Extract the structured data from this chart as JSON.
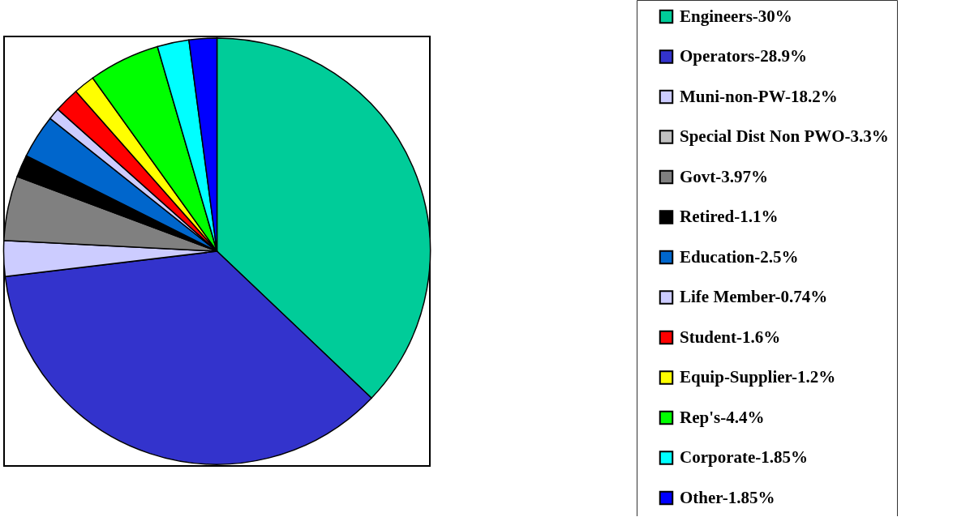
{
  "chart_data": {
    "type": "pie",
    "categories": [
      "Engineers-30%",
      "Operators-28.9%",
      "Muni-non-PW-18.2%",
      "Special Dist Non PWO-3.3%",
      "Govt-3.97%",
      "Retired-1.1%",
      "Education-2.5%",
      "Life Member-0.74%",
      "Student-1.6%",
      "Equip-Supplier-1.2%",
      "Rep's-4.4%",
      "Corporate-1.85%",
      "Other-1.85%"
    ],
    "values": [
      37.1,
      36.0,
      2.7,
      null,
      4.9,
      1.7,
      3.3,
      0.9,
      1.9,
      1.6,
      5.4,
      2.4,
      2.1
    ],
    "colors": [
      "#00cc99",
      "#3333cc",
      "#ccccff",
      "#c0c0c0",
      "#808080",
      "#000000",
      "#0066cc",
      "#ccccff",
      "#ff0000",
      "#ffff00",
      "#00ff00",
      "#00ffff",
      "#0000ff"
    ],
    "legend": "right"
  }
}
